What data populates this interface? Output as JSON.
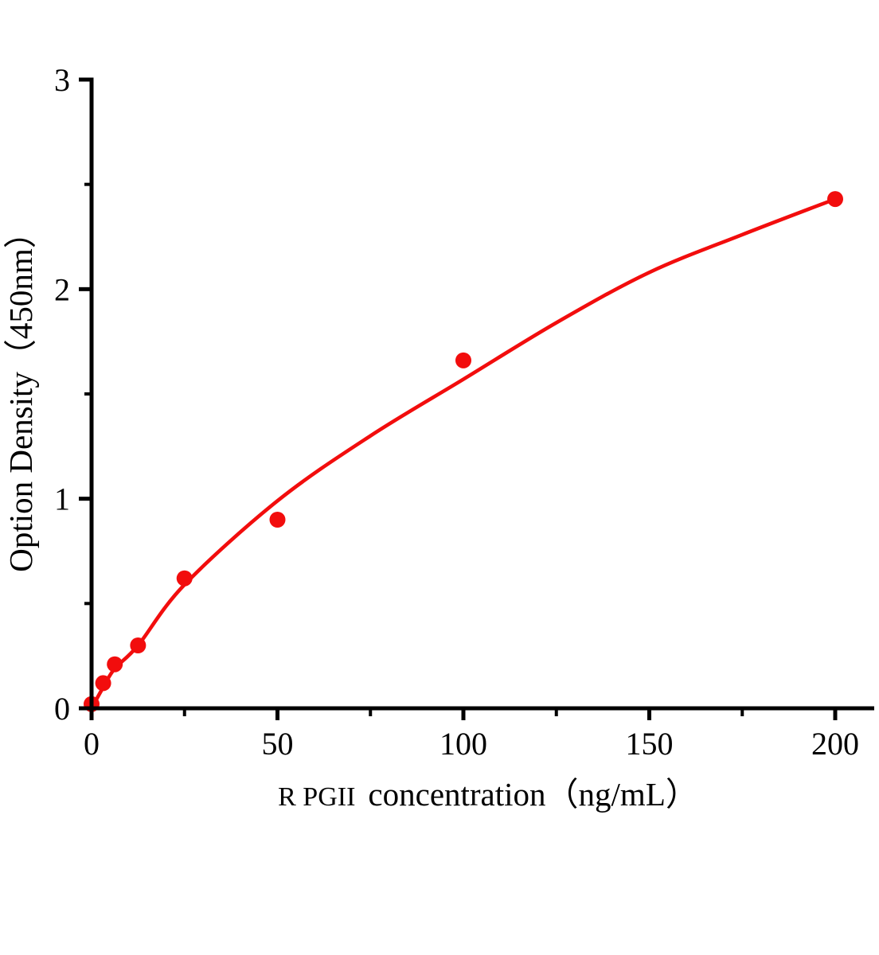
{
  "figure": {
    "background": "#ffffff",
    "axis_color": "#000000",
    "text_color": "#000000",
    "series_color": "#f20d0d"
  },
  "chart_data": {
    "type": "scatter",
    "title": "",
    "xlabel": "R PGII concentration（ng/mL）",
    "xlabel_parts": {
      "prefix": "R PGII",
      "rest": "concentration（ng/mL）"
    },
    "ylabel": "Option Density（450nm）",
    "xlim": [
      0,
      210
    ],
    "ylim": [
      0,
      3
    ],
    "x_major_ticks": [
      0,
      50,
      100,
      150,
      200
    ],
    "x_minor_ticks": [
      25,
      75,
      125,
      175
    ],
    "y_major_ticks": [
      0,
      1,
      2,
      3
    ],
    "y_minor_ticks": [
      0.5,
      1.5,
      2.5
    ],
    "grid": false,
    "legend": false,
    "series": [
      {
        "color": "#f20d0d",
        "marker": "circle",
        "points": [
          {
            "x": 0,
            "y": 0.02
          },
          {
            "x": 3.125,
            "y": 0.12
          },
          {
            "x": 6.25,
            "y": 0.21
          },
          {
            "x": 12.5,
            "y": 0.3
          },
          {
            "x": 25,
            "y": 0.62
          },
          {
            "x": 50,
            "y": 0.9
          },
          {
            "x": 100,
            "y": 1.66
          },
          {
            "x": 200,
            "y": 2.43
          }
        ],
        "fit_curve_points": [
          {
            "x": 0,
            "y": 0.0
          },
          {
            "x": 3.125,
            "y": 0.1
          },
          {
            "x": 6.25,
            "y": 0.19
          },
          {
            "x": 12.5,
            "y": 0.3
          },
          {
            "x": 25,
            "y": 0.59
          },
          {
            "x": 50,
            "y": 0.99
          },
          {
            "x": 75,
            "y": 1.3
          },
          {
            "x": 100,
            "y": 1.57
          },
          {
            "x": 125,
            "y": 1.84
          },
          {
            "x": 150,
            "y": 2.08
          },
          {
            "x": 175,
            "y": 2.26
          },
          {
            "x": 200,
            "y": 2.43
          }
        ]
      }
    ]
  }
}
